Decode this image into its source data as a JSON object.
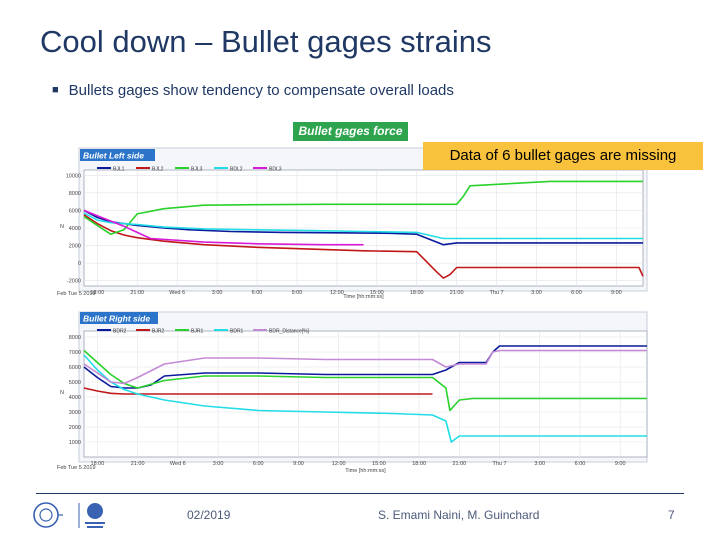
{
  "slide": {
    "title": "Cool down – Bullet gages strains",
    "bullet": "Bullets gages show tendency to compensate overall loads",
    "force_badge": "Bullet gages force",
    "note": "Data of 6 bullet gages are missing",
    "footer_date": "02/2019",
    "footer_authors": "S. Emami Naini, M. Guinchard",
    "page_number": "7"
  },
  "chart_data": [
    {
      "type": "line",
      "title": "Bullet Left side",
      "xlabel": "Time [hh:mm:ss]",
      "ylabel": "N",
      "date_label": "Feb Tue 5 2019",
      "x_tick_labels": [
        "18:00",
        "21:00",
        "Wed 6",
        "3:00",
        "6:00",
        "9:00",
        "12:00",
        "15:00",
        "18:00",
        "21:00",
        "Thu 7",
        "3:00",
        "6:00",
        "9:00"
      ],
      "y_tick_labels": [
        "-2000",
        "0",
        "2000",
        "4000",
        "6000",
        "8000",
        "10000"
      ],
      "y_ticks": [
        -2000,
        0,
        2000,
        4000,
        6000,
        8000,
        10000
      ],
      "xlim": [
        17,
        59
      ],
      "ylim": [
        -2600,
        10600
      ],
      "legend_position": "top",
      "series": [
        {
          "name": "BJL1",
          "color": "#0a1a9c",
          "x": [
            17,
            18,
            19,
            20,
            21,
            23,
            25,
            28,
            32,
            36,
            40,
            42,
            44,
            45,
            47,
            50,
            55,
            59
          ],
          "y": [
            6000,
            5200,
            4700,
            4500,
            4300,
            4000,
            3800,
            3600,
            3500,
            3450,
            3400,
            3300,
            2100,
            2300,
            2300,
            2300,
            2300,
            2300
          ]
        },
        {
          "name": "BJL2",
          "color": "#c01818",
          "x": [
            17,
            18,
            19,
            20,
            21,
            23,
            26,
            30,
            34,
            38,
            42,
            43.5,
            44,
            44.5,
            45,
            46,
            58.7,
            59
          ],
          "y": [
            5500,
            4500,
            3700,
            3200,
            2900,
            2500,
            2100,
            1800,
            1600,
            1400,
            1300,
            -1000,
            -1700,
            -1300,
            -500,
            -500,
            -500,
            -1500
          ]
        },
        {
          "name": "BJL3",
          "color": "#2ad12a",
          "x": [
            17,
            18,
            19,
            20,
            21,
            23,
            26,
            30,
            35,
            40,
            42,
            44,
            45,
            45.5,
            46,
            52,
            59
          ],
          "y": [
            5300,
            4300,
            3300,
            3800,
            5600,
            6200,
            6600,
            6650,
            6700,
            6700,
            6700,
            6700,
            6700,
            7600,
            8800,
            9300,
            9300
          ]
        },
        {
          "name": "BDL2",
          "color": "#22dde6",
          "x": [
            17,
            18,
            19,
            20,
            21,
            23,
            26,
            30,
            34,
            38,
            42,
            44,
            45,
            50,
            59
          ],
          "y": [
            5700,
            4900,
            4600,
            4500,
            4400,
            4100,
            3900,
            3800,
            3700,
            3600,
            3500,
            2800,
            2800,
            2800,
            2800
          ]
        },
        {
          "name": "BDL3",
          "color": "#d81bd8",
          "x": [
            17,
            18,
            19,
            20,
            21,
            22,
            26,
            30,
            35,
            38
          ],
          "y": [
            6000,
            5400,
            4800,
            4200,
            3500,
            2800,
            2400,
            2200,
            2100,
            2100
          ]
        }
      ]
    },
    {
      "type": "line",
      "title": "Bullet Right side",
      "xlabel": "Time [hh:mm:ss]",
      "ylabel": "N",
      "date_label": "Feb Tue 5 2019",
      "x_tick_labels": [
        "18:00",
        "21:00",
        "Wed 6",
        "3:00",
        "6:00",
        "9:00",
        "12:00",
        "15:00",
        "18:00",
        "21:00",
        "Thu 7",
        "3:00",
        "6:00",
        "9:00"
      ],
      "y_tick_labels": [
        "1000",
        "2000",
        "3000",
        "4000",
        "5000",
        "6000",
        "7000",
        "8000"
      ],
      "y_ticks": [
        1000,
        2000,
        3000,
        4000,
        5000,
        6000,
        7000,
        8000
      ],
      "xlim": [
        17,
        59
      ],
      "ylim": [
        0,
        8400
      ],
      "legend_position": "top",
      "series": [
        {
          "name": "BDR2",
          "color": "#0a1a9c",
          "x": [
            17,
            18,
            19,
            20,
            21,
            22,
            23,
            26,
            30,
            35,
            40,
            43,
            44,
            45,
            47,
            47.5,
            48,
            50,
            55,
            59
          ],
          "y": [
            6000,
            5300,
            4700,
            4600,
            4600,
            4800,
            5400,
            5600,
            5600,
            5500,
            5500,
            5500,
            5800,
            6300,
            6300,
            7000,
            7400,
            7400,
            7400,
            7400
          ]
        },
        {
          "name": "BJR2",
          "color": "#c01818",
          "x": [
            17,
            18,
            19,
            20,
            21,
            26,
            30,
            35,
            40,
            43
          ],
          "y": [
            4600,
            4400,
            4250,
            4200,
            4200,
            4200,
            4200,
            4200,
            4200,
            4200
          ]
        },
        {
          "name": "BJR1",
          "color": "#2ad12a",
          "x": [
            17,
            18,
            19,
            20,
            21,
            23,
            26,
            30,
            35,
            40,
            43,
            44,
            44.3,
            45,
            46,
            50,
            59
          ],
          "y": [
            7100,
            6300,
            5500,
            4900,
            4600,
            5100,
            5400,
            5400,
            5300,
            5300,
            5300,
            4600,
            3100,
            3800,
            3900,
            3900,
            3900
          ]
        },
        {
          "name": "BDR1",
          "color": "#22dde6",
          "x": [
            17,
            18,
            19,
            20,
            21,
            23,
            26,
            30,
            35,
            40,
            43,
            44,
            44.4,
            45,
            46,
            50,
            59
          ],
          "y": [
            6800,
            5800,
            5000,
            4500,
            4200,
            3800,
            3400,
            3100,
            3000,
            2900,
            2800,
            2400,
            1000,
            1400,
            1400,
            1400,
            1400
          ]
        },
        {
          "name": "BDR_Distance[%]",
          "color": "#c58ad6",
          "x": [
            17,
            18,
            19,
            20,
            21,
            23,
            26,
            30,
            35,
            40,
            43,
            44,
            45,
            47,
            47.5,
            48,
            50,
            55,
            59
          ],
          "y": [
            6200,
            5600,
            5000,
            4900,
            5300,
            6200,
            6600,
            6600,
            6500,
            6500,
            6500,
            6000,
            6200,
            6200,
            7000,
            7100,
            7100,
            7100,
            7100
          ]
        }
      ]
    }
  ]
}
